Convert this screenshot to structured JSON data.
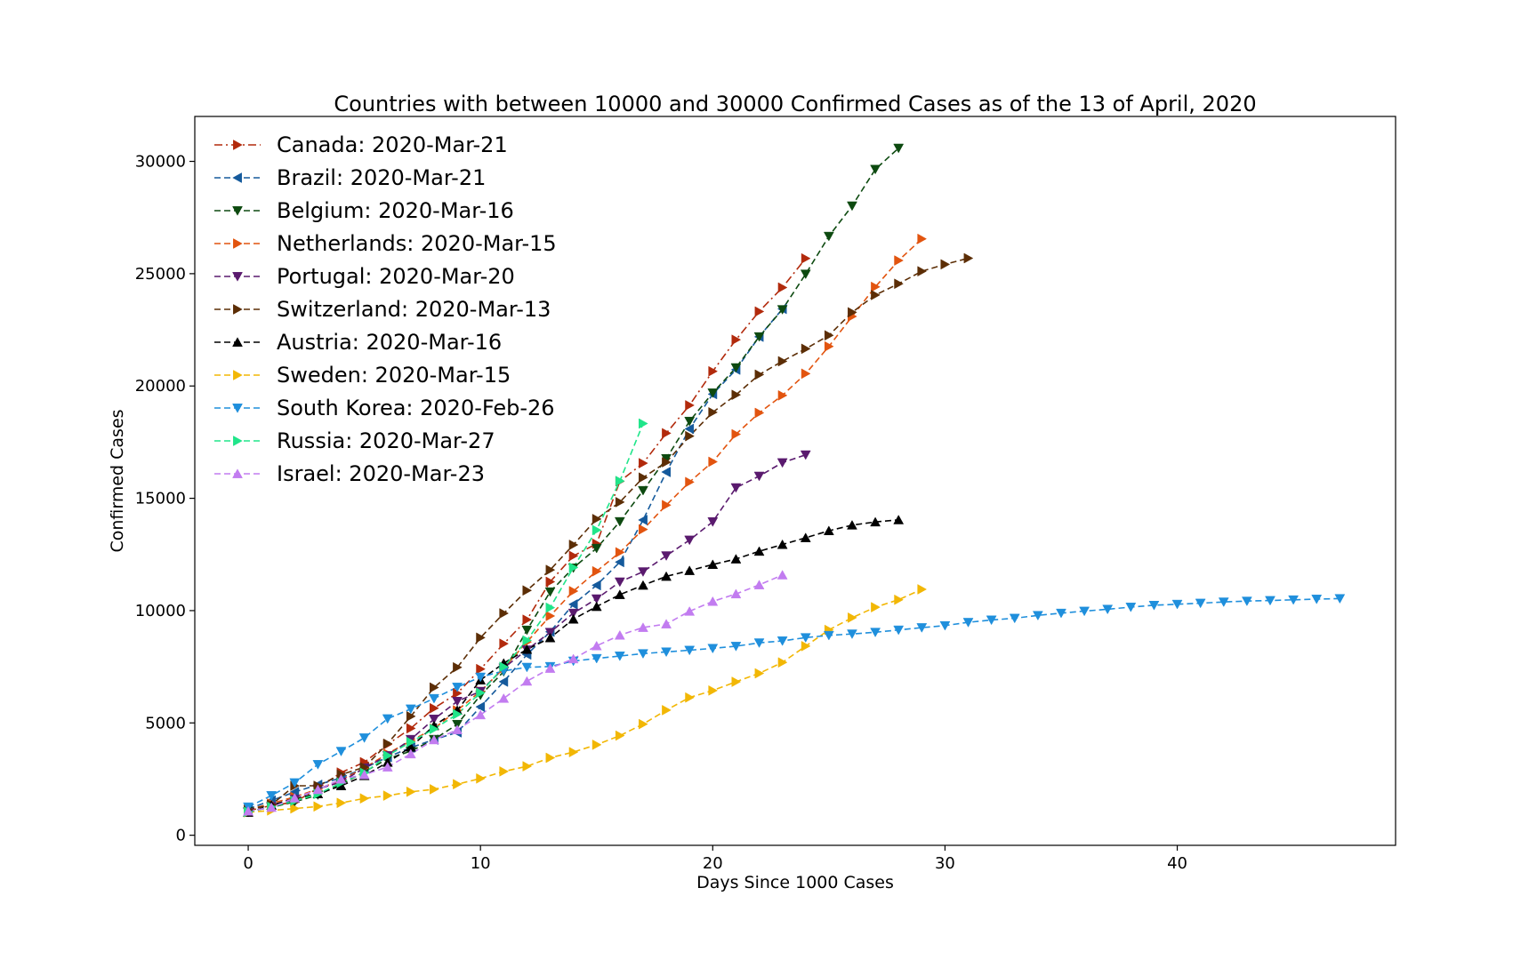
{
  "chart_data": {
    "type": "line",
    "title": "Countries with between 10000 and 30000 Confirmed Cases as of the 13 of April, 2020",
    "xlabel": "Days Since 1000 Cases",
    "ylabel": "Confirmed Cases",
    "xlim": [
      -2.3,
      49.4
    ],
    "ylim": [
      -450,
      32000
    ],
    "xticks": [
      0,
      10,
      20,
      30,
      40
    ],
    "yticks": [
      0,
      5000,
      10000,
      15000,
      20000,
      25000,
      30000
    ],
    "grid": false,
    "legend_position": "upper-left",
    "series": [
      {
        "name": "Canada: 2020-Mar-21",
        "color": "#b22a0c",
        "marker": "right",
        "dash": "dashdot",
        "values": [
          1087,
          1328,
          1470,
          2091,
          2792,
          3251,
          4042,
          4757,
          5655,
          6320,
          7398,
          8527,
          9595,
          11283,
          12437,
          12978,
          15756,
          16563,
          17897,
          19141,
          20654,
          22059,
          23316,
          24383,
          25680
        ]
      },
      {
        "name": "Brazil: 2020-Mar-21",
        "color": "#155a9c",
        "marker": "left",
        "dash": "dashed",
        "values": [
          1178,
          1546,
          1924,
          2247,
          2554,
          2985,
          3477,
          3904,
          4256,
          4579,
          5717,
          6836,
          8044,
          9056,
          10278,
          11130,
          12161,
          14034,
          16170,
          18092,
          19638,
          20727,
          22192,
          23430
        ]
      },
      {
        "name": "Belgium: 2020-Mar-16",
        "color": "#0d4a10",
        "marker": "down",
        "dash": "dashed",
        "values": [
          1058,
          1243,
          1486,
          1795,
          2257,
          2815,
          3401,
          3743,
          4269,
          4937,
          6235,
          7284,
          9134,
          10836,
          11899,
          12775,
          13964,
          15348,
          16770,
          18431,
          19691,
          20814,
          22194,
          23403,
          24983,
          26667,
          28018,
          29647,
          30589
        ]
      },
      {
        "name": "Netherlands: 2020-Mar-15",
        "color": "#e2540f",
        "marker": "right",
        "dash": "dashed",
        "values": [
          1135,
          1413,
          1705,
          2051,
          2460,
          2994,
          3631,
          4204,
          4749,
          5560,
          6412,
          7431,
          8603,
          9762,
          10866,
          11750,
          12595,
          13614,
          14697,
          15723,
          16627,
          17851,
          18803,
          19580,
          20549,
          21762,
          23097,
          24413,
          25587,
          26551
        ]
      },
      {
        "name": "Portugal: 2020-Mar-20",
        "color": "#5a1a6e",
        "marker": "down",
        "dash": "dashed",
        "values": [
          1020,
          1280,
          1600,
          2060,
          2362,
          2995,
          3544,
          4268,
          5170,
          5962,
          6408,
          7443,
          8251,
          9034,
          9886,
          10524,
          11278,
          11730,
          12442,
          13141,
          13956,
          15472,
          15987,
          16585,
          16934
        ]
      },
      {
        "name": "Switzerland: 2020-Mar-13",
        "color": "#5c2e06",
        "marker": "right",
        "dash": "dashed",
        "values": [
          1139,
          1359,
          2200,
          2200,
          2700,
          3028,
          4075,
          5294,
          6575,
          7474,
          8795,
          9877,
          10897,
          11811,
          12928,
          14076,
          14829,
          15922,
          16605,
          17768,
          18827,
          19606,
          20505,
          21100,
          21657,
          22253,
          23280,
          24051,
          24551,
          25107,
          25415,
          25688
        ]
      },
      {
        "name": "Austria: 2020-Mar-16",
        "color": "#000000",
        "marker": "up",
        "dash": "dashed",
        "values": [
          1018,
          1332,
          1646,
          1843,
          2203,
          2649,
          3244,
          3924,
          4876,
          5560,
          6909,
          7657,
          8271,
          8788,
          9618,
          10180,
          10711,
          11129,
          11524,
          11781,
          12051,
          12297,
          12639,
          12942,
          13244,
          13555,
          13806,
          13945,
          14041
        ]
      },
      {
        "name": "Sweden: 2020-Mar-15",
        "color": "#f2b705",
        "marker": "right",
        "dash": "dashed",
        "values": [
          1022,
          1103,
          1190,
          1279,
          1439,
          1639,
          1763,
          1934,
          2046,
          2272,
          2526,
          2840,
          3069,
          3447,
          3700,
          4028,
          4435,
          4947,
          5568,
          6131,
          6443,
          6830,
          7206,
          7693,
          8419,
          9141,
          9685,
          10151,
          10483,
          10948
        ]
      },
      {
        "name": "South Korea: 2020-Feb-26",
        "color": "#1f8fdc",
        "marker": "down",
        "dash": "dashed",
        "values": [
          1261,
          1766,
          2337,
          3150,
          3736,
          4335,
          5186,
          5621,
          6088,
          6593,
          7041,
          7313,
          7478,
          7513,
          7755,
          7869,
          7979,
          8086,
          8162,
          8236,
          8320,
          8413,
          8565,
          8652,
          8799,
          8897,
          8961,
          9037,
          9137,
          9241,
          9332,
          9478,
          9583,
          9661,
          9786,
          9887,
          9976,
          10062,
          10156,
          10237,
          10284,
          10331,
          10384,
          10423,
          10450,
          10480,
          10512,
          10537
        ]
      },
      {
        "name": "Russia: 2020-Mar-27",
        "color": "#20e58a",
        "marker": "right",
        "dash": "dashed",
        "values": [
          1036,
          1264,
          1534,
          1836,
          2337,
          2777,
          3548,
          4149,
          4731,
          5389,
          6343,
          7497,
          8672,
          10131,
          11917,
          13584,
          15770,
          18328
        ]
      },
      {
        "name": "Israel: 2020-Mar-23",
        "color": "#c27cf0",
        "marker": "up",
        "dash": "dashed",
        "values": [
          1071,
          1238,
          1656,
          2030,
          2495,
          2693,
          3035,
          3619,
          4247,
          4695,
          5358,
          6092,
          6857,
          7428,
          7851,
          8430,
          8904,
          9248,
          9404,
          9968,
          10408,
          10743,
          11145,
          11586
        ]
      }
    ]
  }
}
